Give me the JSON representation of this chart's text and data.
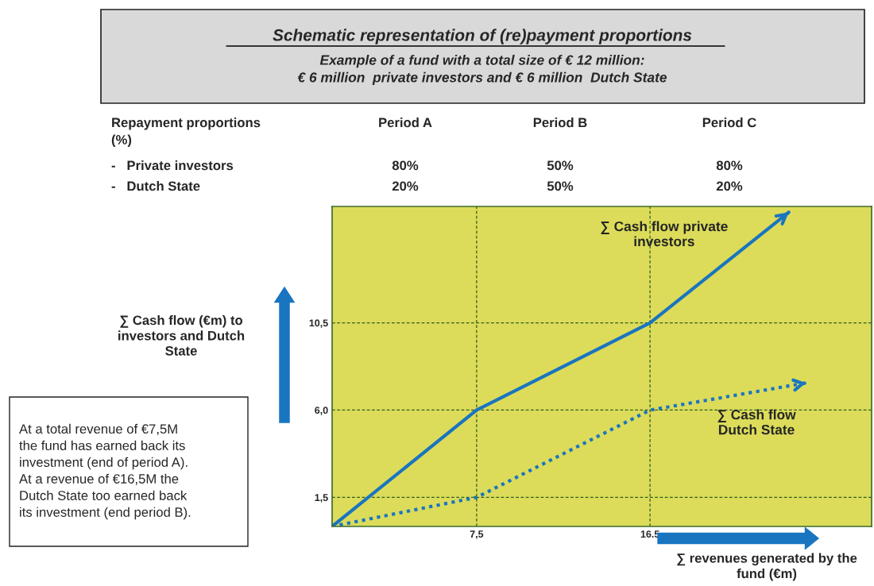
{
  "chart_data": {
    "type": "line",
    "title": "Schematic representation of (re)payment proportions",
    "subtitle": "Example of a fund with a total size of € 12 million:\n€ 6 million  private investors and € 6 million  Dutch State",
    "xlabel": "∑ revenues generated by the\nfund (€m)",
    "ylabel": "∑ Cash flow (€m) to\ninvestors and Dutch\nState",
    "series": [
      {
        "name": "∑ Cash flow private\ninvestors",
        "color": "#1a75c0",
        "line_style": "solid",
        "x": [
          0,
          7.5,
          16.5,
          23.7
        ],
        "values": [
          0,
          6,
          10.5,
          16.2
        ]
      },
      {
        "name": "∑ Cash flow\nDutch State",
        "color": "#1a75c0",
        "line_style": "dotted",
        "x": [
          0,
          7.5,
          16.5,
          24.6
        ],
        "values": [
          0,
          1.5,
          6,
          7.4
        ]
      }
    ],
    "xlim": [
      0,
      28
    ],
    "ylim": [
      0,
      16.5
    ],
    "xticks": [
      {
        "value": 7.5,
        "label": "7,5"
      },
      {
        "value": 16.5,
        "label": "16.5"
      }
    ],
    "yticks": [
      {
        "value": 1.5,
        "label": "1,5"
      },
      {
        "value": 6,
        "label": "6,0"
      },
      {
        "value": 10.5,
        "label": "10,5"
      }
    ],
    "grid": true,
    "legend": false,
    "marker": "none",
    "annotations": [
      "Repayment proportions\n(%)",
      "Period A",
      "Period B",
      "Period C",
      "-   Private investors",
      "80%",
      "50%",
      "80%",
      "-   Dutch State",
      "20%",
      "50%",
      "20%",
      "At a total revenue of €7,5M\nthe fund has earned back its\ninvestment (end of period A).\nAt a revenue of €16,5M the\nDutch State too earned back\nits investment (end period B)."
    ]
  }
}
